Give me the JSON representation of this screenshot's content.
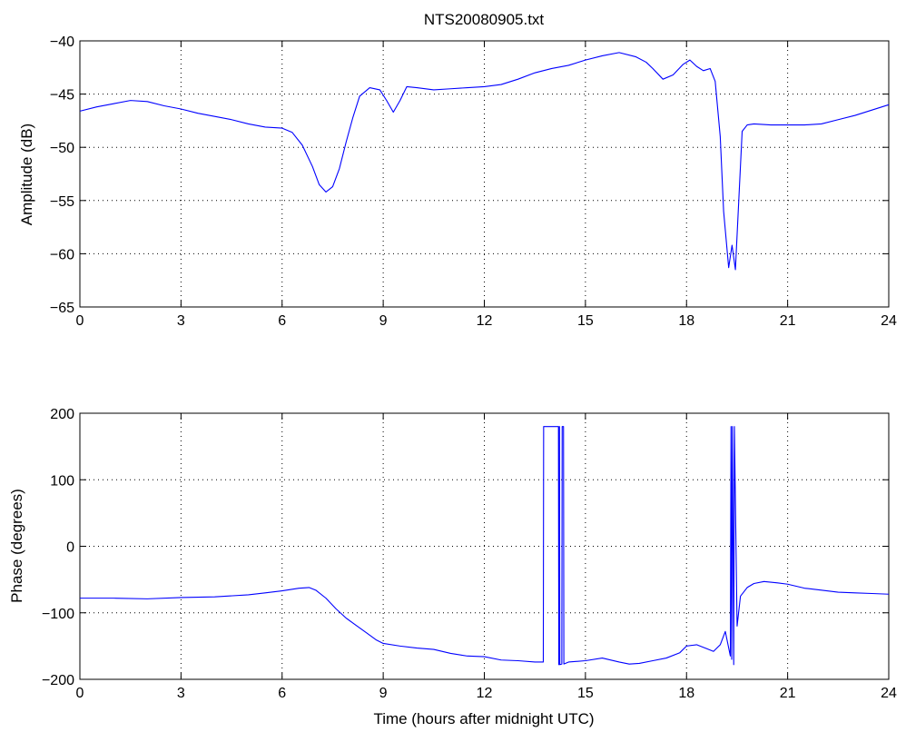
{
  "colors": {
    "series": "#0000ff",
    "axes": "#000000",
    "background": "#ffffff"
  },
  "chart_data": [
    {
      "type": "line",
      "title": "NTS20080905.txt",
      "xlabel": "",
      "ylabel": "Amplitude (dB)",
      "xlim": [
        0,
        24
      ],
      "ylim": [
        -65,
        -40
      ],
      "xticks": [
        0,
        3,
        6,
        9,
        12,
        15,
        18,
        21,
        24
      ],
      "yticks": [
        -65,
        -60,
        -55,
        -50,
        -45,
        -40
      ],
      "xtick_labels": [
        "0",
        "3",
        "6",
        "9",
        "12",
        "15",
        "18",
        "21",
        "24"
      ],
      "ytick_labels": [
        "−65",
        "−60",
        "−55",
        "−50",
        "−45",
        "−40"
      ],
      "grid": true,
      "series": [
        {
          "x": [
            0,
            0.5,
            1.0,
            1.5,
            2.0,
            2.5,
            3.0,
            3.5,
            4.0,
            4.5,
            5.0,
            5.5,
            6.0,
            6.3,
            6.6,
            6.9,
            7.1,
            7.3,
            7.5,
            7.7,
            7.9,
            8.1,
            8.3,
            8.6,
            8.9,
            9.1,
            9.3,
            9.5,
            9.7,
            10.0,
            10.5,
            11.0,
            11.5,
            12.0,
            12.5,
            13.0,
            13.5,
            14.0,
            14.5,
            15.0,
            15.5,
            16.0,
            16.5,
            16.8,
            17.0,
            17.3,
            17.6,
            17.9,
            18.1,
            18.3,
            18.5,
            18.7,
            18.85,
            19.0,
            19.1,
            19.25,
            19.35,
            19.45,
            19.55,
            19.65,
            19.8,
            20.0,
            20.5,
            21.0,
            21.5,
            22.0,
            22.5,
            23.0,
            23.5,
            24.0
          ],
          "y": [
            -46.6,
            -46.2,
            -45.9,
            -45.6,
            -45.7,
            -46.1,
            -46.4,
            -46.8,
            -47.1,
            -47.4,
            -47.8,
            -48.1,
            -48.2,
            -48.6,
            -49.8,
            -51.8,
            -53.5,
            -54.2,
            -53.7,
            -52.0,
            -49.5,
            -47.2,
            -45.2,
            -44.4,
            -44.6,
            -45.6,
            -46.7,
            -45.6,
            -44.3,
            -44.4,
            -44.6,
            -44.5,
            -44.4,
            -44.3,
            -44.1,
            -43.6,
            -43.0,
            -42.6,
            -42.3,
            -41.8,
            -41.4,
            -41.1,
            -41.5,
            -42.0,
            -42.6,
            -43.6,
            -43.2,
            -42.2,
            -41.8,
            -42.4,
            -42.8,
            -42.6,
            -43.8,
            -49.0,
            -56.0,
            -61.3,
            -59.2,
            -61.5,
            -55.0,
            -48.5,
            -47.9,
            -47.8,
            -47.9,
            -47.9,
            -47.9,
            -47.8,
            -47.4,
            -47.0,
            -46.5,
            -46.0
          ]
        }
      ]
    },
    {
      "type": "line",
      "title": "",
      "xlabel": "Time (hours after midnight UTC)",
      "ylabel": "Phase (degrees)",
      "xlim": [
        0,
        24
      ],
      "ylim": [
        -200,
        200
      ],
      "xticks": [
        0,
        3,
        6,
        9,
        12,
        15,
        18,
        21,
        24
      ],
      "yticks": [
        -200,
        -100,
        0,
        100,
        200
      ],
      "xtick_labels": [
        "0",
        "3",
        "6",
        "9",
        "12",
        "15",
        "18",
        "21",
        "24"
      ],
      "ytick_labels": [
        "−200",
        "−100",
        "0",
        "100",
        "200"
      ],
      "grid": true,
      "series": [
        {
          "x": [
            0,
            1.0,
            2.0,
            3.0,
            4.0,
            5.0,
            5.5,
            6.0,
            6.5,
            6.8,
            7.0,
            7.3,
            7.6,
            7.9,
            8.2,
            8.5,
            8.8,
            9.0,
            9.5,
            10.0,
            10.5,
            11.0,
            11.5,
            12.0,
            12.5,
            13.0,
            13.5,
            13.75,
            13.76,
            14.2,
            14.21,
            14.23,
            14.24,
            14.3,
            14.31,
            14.35,
            14.36,
            14.5,
            15.0,
            15.5,
            16.0,
            16.3,
            16.6,
            17.0,
            17.4,
            17.8,
            18.0,
            18.3,
            18.6,
            18.8,
            19.0,
            19.15,
            19.3,
            19.32,
            19.34,
            19.36,
            19.4,
            19.42,
            19.5,
            19.6,
            19.8,
            20.0,
            20.3,
            20.7,
            21.0,
            21.5,
            22.0,
            22.5,
            23.0,
            23.5,
            24.0
          ],
          "y": [
            -78,
            -78,
            -79,
            -77,
            -76,
            -73,
            -70,
            -67,
            -63,
            -62,
            -66,
            -78,
            -94,
            -108,
            -119,
            -130,
            -141,
            -146,
            -150,
            -153,
            -155,
            -161,
            -165,
            -166,
            -171,
            -172,
            -174,
            -174,
            180,
            180,
            -178,
            180,
            -178,
            -177,
            180,
            180,
            -177,
            -174,
            -172,
            -168,
            -174,
            -177,
            -176,
            -172,
            -168,
            -160,
            -150,
            -148,
            -154,
            -158,
            -148,
            -128,
            -165,
            180,
            -170,
            180,
            -178,
            180,
            -120,
            -75,
            -62,
            -56,
            -53,
            -55,
            -57,
            -63,
            -66,
            -69,
            -70,
            -71,
            -72
          ]
        }
      ]
    }
  ]
}
